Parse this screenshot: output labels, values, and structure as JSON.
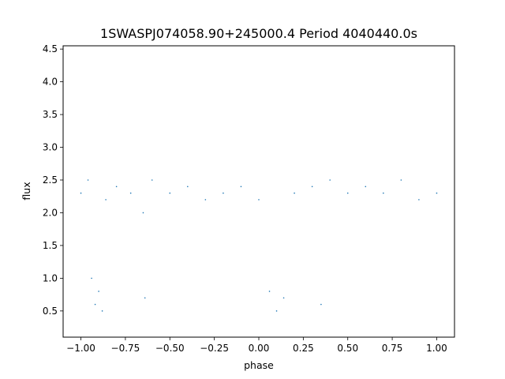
{
  "chart_data": {
    "type": "scatter",
    "title": "1SWASPJ074058.90+245000.4 Period 4040440.0s",
    "xlabel": "phase",
    "ylabel": "flux",
    "xlim": [
      -1.1,
      1.1
    ],
    "ylim": [
      0.1,
      4.55
    ],
    "xticks": [
      -1.0,
      -0.75,
      -0.5,
      -0.25,
      0.0,
      0.25,
      0.5,
      0.75,
      1.0
    ],
    "xtick_labels": [
      "−1.00",
      "−0.75",
      "−0.50",
      "−0.25",
      "0.00",
      "0.25",
      "0.50",
      "0.75",
      "1.00"
    ],
    "yticks": [
      0.5,
      1.0,
      1.5,
      2.0,
      2.5,
      3.0,
      3.5,
      4.0,
      4.5
    ],
    "ytick_labels": [
      "0.5",
      "1.0",
      "1.5",
      "2.0",
      "2.5",
      "3.0",
      "3.5",
      "4.0",
      "4.5"
    ],
    "grid": false,
    "marker_color": "#1f77b4",
    "series": [
      {
        "points": [
          [
            -1.0,
            2.3
          ],
          [
            -0.96,
            2.5
          ],
          [
            -0.94,
            1.0
          ],
          [
            -0.92,
            0.6
          ],
          [
            -0.9,
            0.8
          ],
          [
            -0.88,
            0.5
          ],
          [
            -0.86,
            2.2
          ],
          [
            -0.8,
            2.4
          ],
          [
            -0.72,
            2.3
          ],
          [
            -0.65,
            2.0
          ],
          [
            -0.64,
            0.7
          ],
          [
            -0.6,
            2.5
          ],
          [
            -0.5,
            2.3
          ],
          [
            -0.4,
            2.4
          ],
          [
            -0.3,
            2.2
          ],
          [
            -0.2,
            2.3
          ],
          [
            -0.1,
            2.4
          ],
          [
            0.0,
            2.2
          ],
          [
            0.06,
            0.8
          ],
          [
            0.1,
            0.5
          ],
          [
            0.14,
            0.7
          ],
          [
            0.2,
            2.3
          ],
          [
            0.3,
            2.4
          ],
          [
            0.35,
            0.6
          ],
          [
            0.4,
            2.5
          ],
          [
            0.5,
            2.3
          ],
          [
            0.6,
            2.4
          ],
          [
            0.7,
            2.3
          ],
          [
            0.8,
            2.5
          ],
          [
            0.9,
            2.2
          ],
          [
            1.0,
            2.3
          ]
        ]
      }
    ]
  }
}
